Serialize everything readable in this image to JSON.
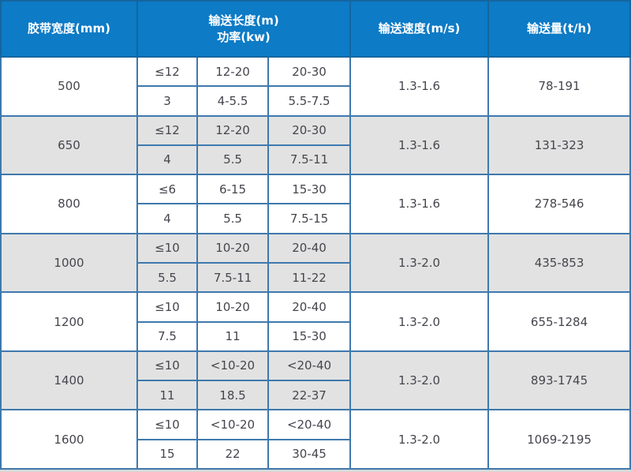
{
  "table": {
    "headers": {
      "width": "胶带宽度(mm)",
      "length_line1": "输送长度(m)",
      "length_line2": "功率(kw)",
      "speed": "输送速度(m/s)",
      "capacity": "输送量(t/h)"
    },
    "rows": [
      {
        "width": "500",
        "length": [
          "≤12",
          "12-20",
          "20-30"
        ],
        "power": [
          "3",
          "4-5.5",
          "5.5-7.5"
        ],
        "speed": "1.3-1.6",
        "capacity": "78-191"
      },
      {
        "width": "650",
        "length": [
          "≤12",
          "12-20",
          "20-30"
        ],
        "power": [
          "4",
          "5.5",
          "7.5-11"
        ],
        "speed": "1.3-1.6",
        "capacity": "131-323"
      },
      {
        "width": "800",
        "length": [
          "≤6",
          "6-15",
          "15-30"
        ],
        "power": [
          "4",
          "5.5",
          "7.5-15"
        ],
        "speed": "1.3-1.6",
        "capacity": "278-546"
      },
      {
        "width": "1000",
        "length": [
          "≤10",
          "10-20",
          "20-40"
        ],
        "power": [
          "5.5",
          "7.5-11",
          "11-22"
        ],
        "speed": "1.3-2.0",
        "capacity": "435-853"
      },
      {
        "width": "1200",
        "length": [
          "≤10",
          "10-20",
          "20-40"
        ],
        "power": [
          "7.5",
          "11",
          "15-30"
        ],
        "speed": "1.3-2.0",
        "capacity": "655-1284"
      },
      {
        "width": "1400",
        "length": [
          "≤10",
          "<10-20",
          "<20-40"
        ],
        "power": [
          "11",
          "18.5",
          "22-37"
        ],
        "speed": "1.3-2.0",
        "capacity": "893-1745"
      },
      {
        "width": "1600",
        "length": [
          "≤10",
          "<10-20",
          "<20-40"
        ],
        "power": [
          "15",
          "22",
          "30-45"
        ],
        "speed": "1.3-2.0",
        "capacity": "1069-2195"
      }
    ],
    "colors": {
      "header_bg": "#0d7bc6",
      "header_text": "#ffffff",
      "header_border": "#15659f",
      "grid_border": "#3e79ad",
      "outer_border": "#2e6da6",
      "alt_row_bg": "#e2e2e2",
      "body_text": "#45454d",
      "row_bg": "#ffffff"
    }
  }
}
